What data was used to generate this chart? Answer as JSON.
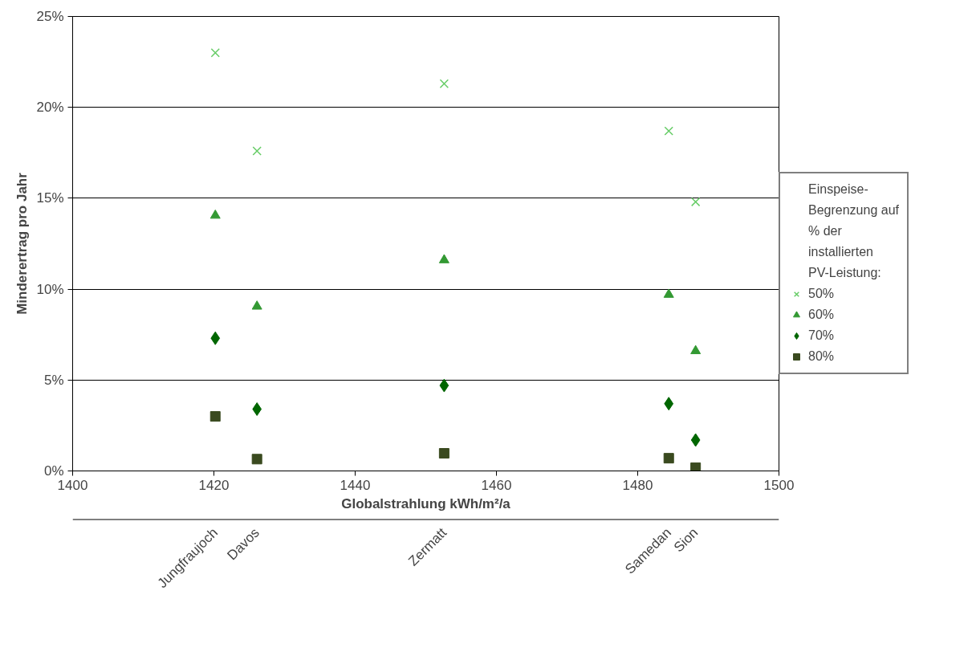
{
  "chart_data": {
    "type": "scatter",
    "xlabel": "Globalstrahlung kWh/m²/a",
    "ylabel": "Minderertrag pro Jahr",
    "legend_title": "Einspeise-Begrenzung auf % der installierten PV-Leistung:",
    "legend": "right",
    "grid": "y",
    "xlim": [
      1400,
      1500
    ],
    "xticks": [
      1400,
      1420,
      1440,
      1460,
      1480,
      1500
    ],
    "ylim": [
      0,
      25
    ],
    "yticks": [
      {
        "value": 0,
        "label": "0%"
      },
      {
        "value": 5,
        "label": "5%"
      },
      {
        "value": 10,
        "label": "10%"
      },
      {
        "value": 15,
        "label": "15%"
      },
      {
        "value": 20,
        "label": "20%"
      },
      {
        "value": 25,
        "label": "25%"
      }
    ],
    "x": [
      1420.2,
      1426.1,
      1452.6,
      1484.4,
      1488.2
    ],
    "series": [
      {
        "name": "50%",
        "color": "#66cc66",
        "marker": "cross",
        "values": [
          23.0,
          17.6,
          21.3,
          18.7,
          14.8
        ]
      },
      {
        "name": "60%",
        "color": "#339933",
        "marker": "triangle",
        "values": [
          14.05,
          9.05,
          11.6,
          9.7,
          6.6
        ]
      },
      {
        "name": "70%",
        "color": "#006600",
        "marker": "diamond",
        "values": [
          7.3,
          3.4,
          4.7,
          3.7,
          1.7
        ]
      },
      {
        "name": "80%",
        "color": "#3a4a1f",
        "marker": "square",
        "values": [
          3.0,
          0.65,
          0.97,
          0.7,
          0.18
        ]
      }
    ],
    "annotations": [
      "Jungfraujoch",
      "Davos",
      "Zermatt",
      "Samedan",
      "Sion"
    ]
  }
}
